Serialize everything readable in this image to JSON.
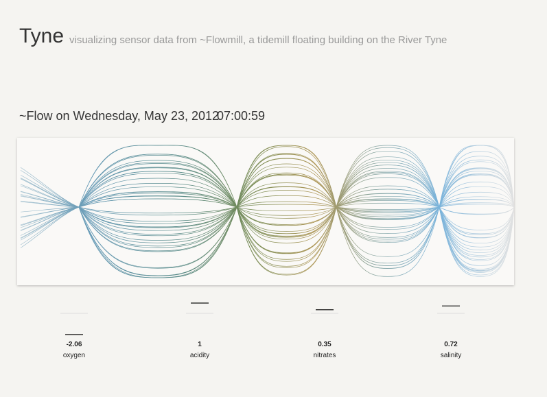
{
  "header": {
    "title": "Tyne",
    "subtitle": "visualizing sensor data from ~Flowmill, a tidemill floating building on the River Tyne"
  },
  "flow": {
    "heading": "~Flow on Wednesday, May 23, 2012",
    "time": "07:00:59"
  },
  "sensors": [
    {
      "value": -2.06,
      "label": "oxygen"
    },
    {
      "value": 1,
      "label": "acidity"
    },
    {
      "value": 0.35,
      "label": "nitrates"
    },
    {
      "value": 0.72,
      "label": "salinity"
    }
  ]
}
